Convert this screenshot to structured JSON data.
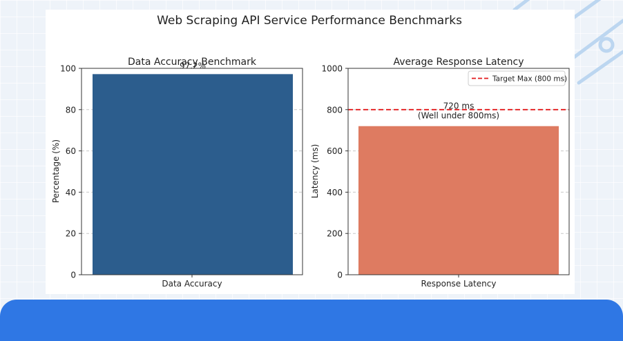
{
  "figure": {
    "title": "Web Scraping API Service Performance Benchmarks"
  },
  "colors": {
    "accuracy_bar": "#2c5d8d",
    "latency_bar": "#de7b61",
    "target_line": "#e31a1c",
    "bottom_band": "#2f77e4"
  },
  "chart_data": [
    {
      "type": "bar",
      "title": "Data Accuracy Benchmark",
      "categories": [
        "Data Accuracy"
      ],
      "values": [
        97.2
      ],
      "data_labels": [
        "97.2%"
      ],
      "xlabel": "",
      "ylabel": "Percentage (%)",
      "ylim": [
        0,
        100
      ],
      "yticks": [
        0,
        20,
        40,
        60,
        80,
        100
      ],
      "grid": "y-dashed"
    },
    {
      "type": "bar",
      "title": "Average Response Latency",
      "categories": [
        "Response Latency"
      ],
      "values": [
        720
      ],
      "annotation": [
        "720 ms",
        "(Well under 800ms)"
      ],
      "xlabel": "",
      "ylabel": "Latency (ms)",
      "ylim": [
        0,
        1000
      ],
      "yticks": [
        0,
        200,
        400,
        600,
        800,
        1000
      ],
      "grid": "y-dashed",
      "reference_line": {
        "value": 800,
        "label": "Target Max (800 ms)",
        "style": "dashed"
      },
      "legend": "top-right"
    }
  ]
}
